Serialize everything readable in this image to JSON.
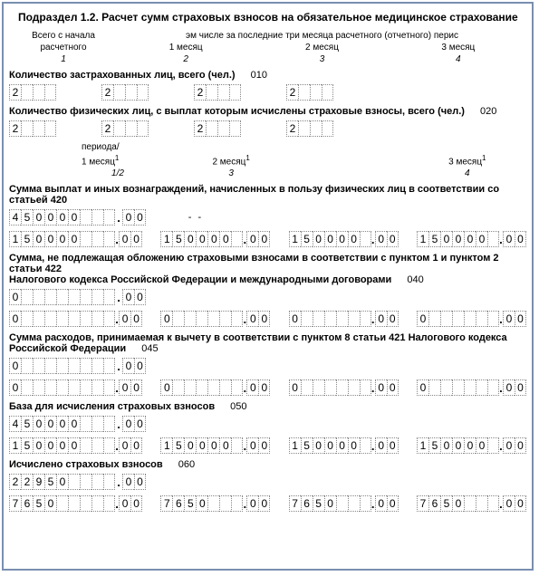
{
  "title": "Подраздел 1.2. Расчет сумм страховых взносов на обязательное медицинское страхование",
  "header": {
    "col1_line1": "Всего с начала",
    "col1_line2": "расчетного",
    "col234_title": "эм числе за последние три месяца расчетного (отчетного) перис",
    "m1": "1 месяц",
    "m2": "2 месяц",
    "m3": "3 месяц",
    "n1": "1",
    "n2": "2",
    "n3": "3",
    "n4": "4"
  },
  "sections": {
    "s010_label": "Количество застрахованных лиц, всего (чел.)",
    "s010_code": "010",
    "s020_label": "Количество физических лиц, с выплат которым исчислены страховые взносы, всего (чел.)",
    "s020_code": "020",
    "period_label": "периода/",
    "mm1": "1 месяц",
    "mm2": "2 месяц",
    "mm3": "3 месяц",
    "sup": "1",
    "sub_1": "1/2",
    "sub_3": "3",
    "sub_4": "4",
    "s030_label": "Сумма выплат и иных вознаграждений, начисленных в пользу физических лиц в соответствии со статьей 420",
    "s040_label1": "Сумма, не подлежащая обложению страховыми взносами в соответствии с пунктом 1 и пунктом 2 статьи 422",
    "s040_label2": "Налогового кодекса Российской Федерации и международными договорами",
    "s040_code": "040",
    "s045_label1": "Сумма расходов, принимаемая к вычету в соответствии с пунктом 8 статьи 421 Налогового кодекса",
    "s045_label2": "Российской Федерации",
    "s045_code": "045",
    "s050_label": "База для исчисления страховых взносов",
    "s050_code": "050",
    "s060_label": "Исчислено страховых взносов",
    "s060_code": "060"
  },
  "values": {
    "count_010": [
      "2",
      "2",
      "2",
      "2"
    ],
    "count_020": [
      "2",
      "2",
      "2",
      "2"
    ],
    "sum_030_total_int": "450000",
    "sum_030_total_dec": "00",
    "sum_030_m_int": "150000",
    "sum_030_m_dec": "00",
    "sum_040_total_int": "0",
    "sum_040_total_dec": "00",
    "sum_040_m_int": "0",
    "sum_040_m_dec": "00",
    "sum_045_total_int": "0",
    "sum_045_total_dec": "00",
    "sum_045_m_int": "0",
    "sum_045_m_dec": "00",
    "sum_050_total_int": "450000",
    "sum_050_total_dec": "00",
    "sum_050_m_int": "150000",
    "sum_050_m_dec": "00",
    "sum_060_total_int": "22950",
    "sum_060_total_dec": "00",
    "sum_060_m_int": "7650",
    "sum_060_m_dec": "00"
  },
  "layout": {
    "count_cells": 4,
    "int_cells_total": 9,
    "int_cells_month": 9,
    "dec_cells": 2
  }
}
